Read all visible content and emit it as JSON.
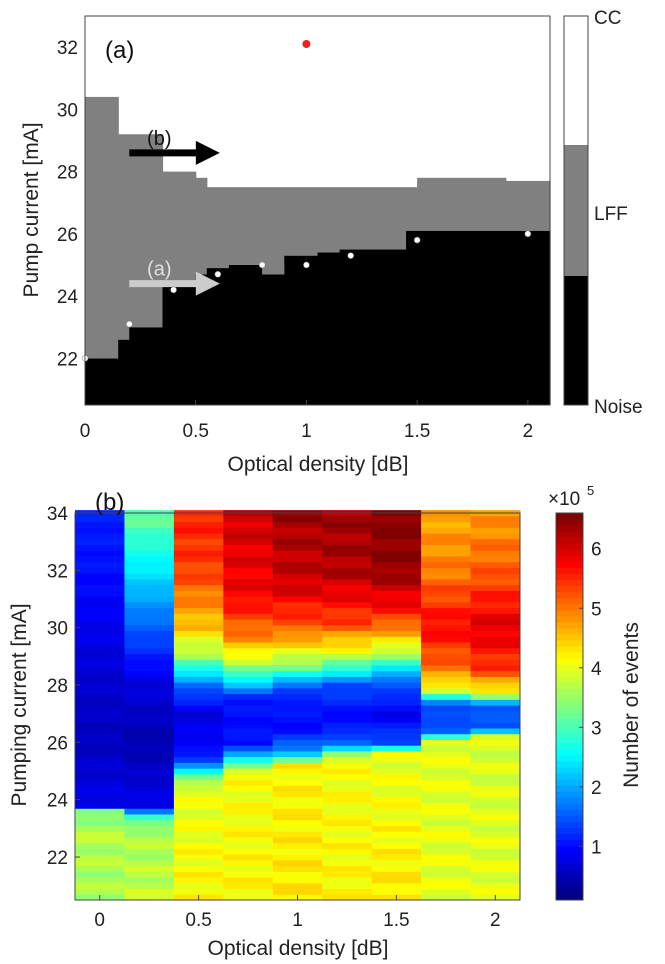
{
  "figure": {
    "panel_a": {
      "label": "(a)",
      "annotations": {
        "arrow_b": "(b)",
        "arrow_a": "(a)"
      }
    },
    "panel_b": {
      "label": "(b)"
    }
  },
  "chart_data": [
    {
      "type": "heatmap",
      "panel": "(a)",
      "xlabel": "Optical density [dB]",
      "ylabel": "Pump current [mA]",
      "xlim": [
        0,
        2.1
      ],
      "ylim": [
        20.5,
        33
      ],
      "xticks": [
        0,
        0.5,
        1,
        1.5,
        2
      ],
      "yticks": [
        22,
        24,
        26,
        28,
        30,
        32
      ],
      "colorbar": {
        "labels": [
          "CC",
          "LFF",
          "Noise"
        ],
        "colors": {
          "CC": "#ffffff",
          "LFF": "#808080",
          "Noise": "#000000"
        }
      },
      "columns": [
        {
          "x0": 0.0,
          "x1": 0.15,
          "noise_top": 22.0,
          "lff_top": 30.4
        },
        {
          "x0": 0.15,
          "x1": 0.2,
          "noise_top": 22.6,
          "lff_top": 29.2
        },
        {
          "x0": 0.2,
          "x1": 0.35,
          "noise_top": 23.0,
          "lff_top": 29.2
        },
        {
          "x0": 0.35,
          "x1": 0.5,
          "noise_top": 24.3,
          "lff_top": 28.0
        },
        {
          "x0": 0.5,
          "x1": 0.55,
          "noise_top": 24.7,
          "lff_top": 27.8
        },
        {
          "x0": 0.55,
          "x1": 0.65,
          "noise_top": 24.9,
          "lff_top": 27.5
        },
        {
          "x0": 0.65,
          "x1": 0.8,
          "noise_top": 25.0,
          "lff_top": 27.5
        },
        {
          "x0": 0.8,
          "x1": 0.9,
          "noise_top": 24.7,
          "lff_top": 27.5
        },
        {
          "x0": 0.9,
          "x1": 1.05,
          "noise_top": 25.3,
          "lff_top": 27.5
        },
        {
          "x0": 1.05,
          "x1": 1.15,
          "noise_top": 25.4,
          "lff_top": 27.5
        },
        {
          "x0": 1.15,
          "x1": 1.45,
          "noise_top": 25.5,
          "lff_top": 27.5
        },
        {
          "x0": 1.45,
          "x1": 1.5,
          "noise_top": 26.1,
          "lff_top": 27.5
        },
        {
          "x0": 1.5,
          "x1": 1.9,
          "noise_top": 26.1,
          "lff_top": 27.8
        },
        {
          "x0": 1.9,
          "x1": 2.1,
          "noise_top": 26.1,
          "lff_top": 27.7
        }
      ],
      "extra_lff_patches": [
        {
          "x0": 0.8,
          "x1": 0.9,
          "y0": 24.7,
          "y1": 25.0
        }
      ],
      "points": [
        {
          "x": 0.0,
          "y": 22.0
        },
        {
          "x": 0.2,
          "y": 23.1
        },
        {
          "x": 0.4,
          "y": 24.2
        },
        {
          "x": 0.6,
          "y": 24.7
        },
        {
          "x": 0.8,
          "y": 25.0
        },
        {
          "x": 1.0,
          "y": 25.0
        },
        {
          "x": 1.2,
          "y": 25.3
        },
        {
          "x": 1.5,
          "y": 25.8
        },
        {
          "x": 2.0,
          "y": 26.0
        }
      ],
      "red_point": {
        "x": 1.0,
        "y": 32.1
      },
      "arrows": [
        {
          "label_key": "arrow_b",
          "x0": 0.2,
          "x1": 0.6,
          "y": 28.6,
          "color": "#000000"
        },
        {
          "label_key": "arrow_a",
          "x0": 0.2,
          "x1": 0.6,
          "y": 24.4,
          "color": "#cccccc"
        }
      ]
    },
    {
      "type": "heatmap",
      "panel": "(b)",
      "xlabel": "Optical density [dB]",
      "ylabel": "Pumping current [mA]",
      "xlim": [
        -0.12,
        2.12
      ],
      "ylim": [
        20.5,
        34
      ],
      "xticks": [
        0,
        0.5,
        1,
        1.5,
        2
      ],
      "yticks": [
        22,
        24,
        26,
        28,
        30,
        32,
        34
      ],
      "colorbar": {
        "label": "Number of events",
        "exponent": "×10",
        "exponent_power": "5",
        "ticks": [
          1,
          2,
          3,
          4,
          5,
          6
        ],
        "range": [
          0.1,
          6.6
        ],
        "colormap": "jet"
      },
      "columns_x": [
        0,
        0.25,
        0.5,
        0.75,
        1.0,
        1.25,
        1.5,
        1.75,
        2.0
      ],
      "column_profiles": [
        {
          "x": 0,
          "knots": [
            [
              20.5,
              3.6
            ],
            [
              23.0,
              3.7
            ],
            [
              23.6,
              3.2
            ],
            [
              23.8,
              0.8
            ],
            [
              26,
              0.5
            ],
            [
              28,
              0.6
            ],
            [
              30,
              0.8
            ],
            [
              32,
              1.0
            ],
            [
              34,
              1.1
            ]
          ]
        },
        {
          "x": 0.25,
          "knots": [
            [
              20.5,
              3.8
            ],
            [
              23.0,
              3.6
            ],
            [
              23.5,
              2.6
            ],
            [
              23.7,
              0.8
            ],
            [
              26,
              0.4
            ],
            [
              28,
              0.7
            ],
            [
              30,
              1.5
            ],
            [
              32,
              2.4
            ],
            [
              34,
              3.2
            ]
          ]
        },
        {
          "x": 0.5,
          "knots": [
            [
              20.5,
              4.2
            ],
            [
              24.5,
              4.0
            ],
            [
              25.0,
              2.5
            ],
            [
              25.5,
              1.0
            ],
            [
              27,
              0.7
            ],
            [
              28,
              1.6
            ],
            [
              29,
              3.5
            ],
            [
              30,
              4.5
            ],
            [
              32,
              5.4
            ],
            [
              34,
              5.6
            ]
          ]
        },
        {
          "x": 0.75,
          "knots": [
            [
              20.5,
              4.2
            ],
            [
              25.0,
              4.1
            ],
            [
              25.5,
              2.2
            ],
            [
              26.0,
              1.0
            ],
            [
              27.5,
              1.0
            ],
            [
              28.5,
              3.2
            ],
            [
              29.5,
              4.8
            ],
            [
              31,
              5.8
            ],
            [
              34,
              6.1
            ]
          ]
        },
        {
          "x": 1.0,
          "knots": [
            [
              20.5,
              4.3
            ],
            [
              25.2,
              4.2
            ],
            [
              25.7,
              1.8
            ],
            [
              26.5,
              0.9
            ],
            [
              27.8,
              1.2
            ],
            [
              28.8,
              3.6
            ],
            [
              30,
              5.2
            ],
            [
              31.5,
              6.1
            ],
            [
              34,
              6.4
            ]
          ]
        },
        {
          "x": 1.25,
          "knots": [
            [
              20.5,
              4.2
            ],
            [
              25.5,
              4.1
            ],
            [
              25.9,
              1.6
            ],
            [
              26.8,
              0.9
            ],
            [
              28.0,
              1.4
            ],
            [
              29.0,
              3.8
            ],
            [
              30.2,
              5.4
            ],
            [
              32,
              6.3
            ],
            [
              34,
              6.4
            ]
          ]
        },
        {
          "x": 1.5,
          "knots": [
            [
              20.5,
              4.3
            ],
            [
              25.6,
              4.0
            ],
            [
              26.0,
              1.4
            ],
            [
              27.0,
              0.8
            ],
            [
              28.2,
              1.6
            ],
            [
              29.3,
              4.0
            ],
            [
              30.5,
              5.6
            ],
            [
              32,
              6.5
            ],
            [
              34,
              6.6
            ]
          ]
        },
        {
          "x": 1.75,
          "knots": [
            [
              20.5,
              4.0
            ],
            [
              26.0,
              4.0
            ],
            [
              26.4,
              1.5
            ],
            [
              27.3,
              1.3
            ],
            [
              27.8,
              3.8
            ],
            [
              28.5,
              5.0
            ],
            [
              30,
              5.8
            ],
            [
              32,
              5.0
            ],
            [
              34,
              4.7
            ]
          ]
        },
        {
          "x": 2.0,
          "knots": [
            [
              20.5,
              4.0
            ],
            [
              26.2,
              3.9
            ],
            [
              26.5,
              1.4
            ],
            [
              27.3,
              1.5
            ],
            [
              27.7,
              4.0
            ],
            [
              28.5,
              5.4
            ],
            [
              30,
              6.0
            ],
            [
              32,
              5.2
            ],
            [
              34,
              4.8
            ]
          ]
        }
      ]
    }
  ]
}
